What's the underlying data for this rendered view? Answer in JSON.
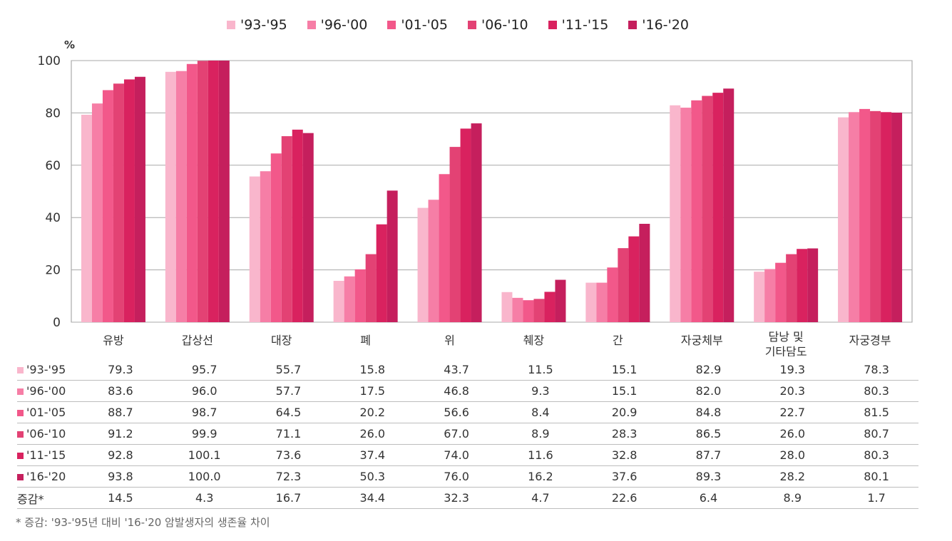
{
  "chart_data": {
    "type": "bar",
    "ylabel": "%",
    "ylim": [
      0,
      100
    ],
    "yticks": [
      0,
      20,
      40,
      60,
      80,
      100
    ],
    "grid": true,
    "legend_position": "top",
    "categories": [
      "유방",
      "갑상선",
      "대장",
      "폐",
      "위",
      "췌장",
      "간",
      "자궁체부",
      "담낭 및\n기타담도",
      "자궁경부"
    ],
    "series": [
      {
        "name": "'93-'95",
        "color": "#f9b6cc",
        "values": [
          79.3,
          95.7,
          55.7,
          15.8,
          43.7,
          11.5,
          15.1,
          82.9,
          19.3,
          78.3
        ]
      },
      {
        "name": "'96-'00",
        "color": "#f67ea6",
        "values": [
          83.6,
          96.0,
          57.7,
          17.5,
          46.8,
          9.3,
          15.1,
          82.0,
          20.3,
          80.3
        ]
      },
      {
        "name": "'01-'05",
        "color": "#f2588a",
        "values": [
          88.7,
          98.7,
          64.5,
          20.2,
          56.6,
          8.4,
          20.9,
          84.8,
          22.7,
          81.5
        ]
      },
      {
        "name": "'06-'10",
        "color": "#e34274",
        "values": [
          91.2,
          99.9,
          71.1,
          26.0,
          67.0,
          8.9,
          28.3,
          86.5,
          26.0,
          80.7
        ]
      },
      {
        "name": "'11-'15",
        "color": "#d9225f",
        "values": [
          92.8,
          100.1,
          73.6,
          37.4,
          74.0,
          11.6,
          32.8,
          87.7,
          28.0,
          80.3
        ]
      },
      {
        "name": "'16-'20",
        "color": "#c51f5d",
        "values": [
          93.8,
          100.0,
          72.3,
          50.3,
          76.0,
          16.2,
          37.6,
          89.3,
          28.2,
          80.1
        ]
      }
    ],
    "table": {
      "rows": [
        {
          "label": "'93-'95",
          "values": [
            "79.3",
            "95.7",
            "55.7",
            "15.8",
            "43.7",
            "11.5",
            "15.1",
            "82.9",
            "19.3",
            "78.3"
          ]
        },
        {
          "label": "'96-'00",
          "values": [
            "83.6",
            "96.0",
            "57.7",
            "17.5",
            "46.8",
            "9.3",
            "15.1",
            "82.0",
            "20.3",
            "80.3"
          ]
        },
        {
          "label": "'01-'05",
          "values": [
            "88.7",
            "98.7",
            "64.5",
            "20.2",
            "56.6",
            "8.4",
            "20.9",
            "84.8",
            "22.7",
            "81.5"
          ]
        },
        {
          "label": "'06-'10",
          "values": [
            "91.2",
            "99.9",
            "71.1",
            "26.0",
            "67.0",
            "8.9",
            "28.3",
            "86.5",
            "26.0",
            "80.7"
          ]
        },
        {
          "label": "'11-'15",
          "values": [
            "92.8",
            "100.1",
            "73.6",
            "37.4",
            "74.0",
            "11.6",
            "32.8",
            "87.7",
            "28.0",
            "80.3"
          ]
        },
        {
          "label": "'16-'20",
          "values": [
            "93.8",
            "100.0",
            "72.3",
            "50.3",
            "76.0",
            "16.2",
            "37.6",
            "89.3",
            "28.2",
            "80.1"
          ]
        }
      ],
      "change": {
        "label": "증감*",
        "values": [
          "14.5",
          "4.3",
          "16.7",
          "34.4",
          "32.3",
          "4.7",
          "22.6",
          "6.4",
          "8.9",
          "1.7"
        ]
      }
    },
    "footnote": "* 증감: '93-'95년 대비 '16-'20 암발생자의 생존율 차이"
  }
}
